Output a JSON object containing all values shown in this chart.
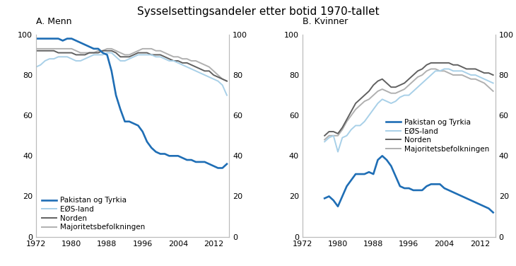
{
  "title": "Sysselsettingsandeler etter botid 1970-tallet",
  "panel_a_title": "A. Menn",
  "panel_b_title": "B. Kvinner",
  "legend_labels": [
    "Pakistan og Tyrkia",
    "EØS-land",
    "Norden",
    "Majoritetsbefolkningen"
  ],
  "colors": {
    "pakistan": "#1f6eb5",
    "eos": "#a8d0e8",
    "norden": "#606060",
    "majoritet": "#b0b0b0"
  },
  "ylim": [
    0,
    100
  ],
  "xticks": [
    1972,
    1980,
    1988,
    1996,
    2004,
    2012
  ],
  "yticks": [
    0,
    20,
    40,
    60,
    80,
    100
  ],
  "men": {
    "pakistan": {
      "years": [
        1972,
        1973,
        1974,
        1975,
        1976,
        1977,
        1978,
        1979,
        1980,
        1981,
        1982,
        1983,
        1984,
        1985,
        1986,
        1987,
        1988,
        1989,
        1990,
        1991,
        1992,
        1993,
        1994,
        1995,
        1996,
        1997,
        1998,
        1999,
        2000,
        2001,
        2002,
        2003,
        2004,
        2005,
        2006,
        2007,
        2008,
        2009,
        2010,
        2011,
        2012,
        2013,
        2014,
        2015
      ],
      "values": [
        98,
        98,
        98,
        98,
        98,
        98,
        97,
        98,
        98,
        97,
        96,
        95,
        94,
        93,
        93,
        91,
        90,
        82,
        70,
        63,
        57,
        57,
        56,
        55,
        52,
        47,
        44,
        42,
        41,
        41,
        40,
        40,
        40,
        39,
        38,
        38,
        37,
        37,
        37,
        36,
        35,
        34,
        34,
        36
      ]
    },
    "eos": {
      "years": [
        1972,
        1973,
        1974,
        1975,
        1976,
        1977,
        1978,
        1979,
        1980,
        1981,
        1982,
        1983,
        1984,
        1985,
        1986,
        1987,
        1988,
        1989,
        1990,
        1991,
        1992,
        1993,
        1994,
        1995,
        1996,
        1997,
        1998,
        1999,
        2000,
        2001,
        2002,
        2003,
        2004,
        2005,
        2006,
        2007,
        2008,
        2009,
        2010,
        2011,
        2012,
        2013,
        2014,
        2015
      ],
      "values": [
        84,
        85,
        87,
        88,
        88,
        89,
        89,
        89,
        88,
        87,
        87,
        88,
        89,
        90,
        90,
        90,
        91,
        91,
        89,
        87,
        87,
        88,
        89,
        90,
        90,
        90,
        90,
        89,
        89,
        88,
        87,
        87,
        86,
        85,
        84,
        83,
        82,
        81,
        80,
        79,
        78,
        77,
        75,
        70
      ]
    },
    "norden": {
      "years": [
        1972,
        1973,
        1974,
        1975,
        1976,
        1977,
        1978,
        1979,
        1980,
        1981,
        1982,
        1983,
        1984,
        1985,
        1986,
        1987,
        1988,
        1989,
        1990,
        1991,
        1992,
        1993,
        1994,
        1995,
        1996,
        1997,
        1998,
        1999,
        2000,
        2001,
        2002,
        2003,
        2004,
        2005,
        2006,
        2007,
        2008,
        2009,
        2010,
        2011,
        2012,
        2013,
        2014,
        2015
      ],
      "values": [
        92,
        92,
        92,
        92,
        92,
        91,
        91,
        91,
        91,
        90,
        90,
        90,
        91,
        91,
        91,
        92,
        92,
        92,
        91,
        89,
        89,
        89,
        90,
        91,
        91,
        91,
        90,
        90,
        90,
        89,
        88,
        87,
        87,
        86,
        86,
        85,
        84,
        83,
        82,
        82,
        80,
        79,
        78,
        77
      ]
    },
    "majoritet": {
      "years": [
        1972,
        1973,
        1974,
        1975,
        1976,
        1977,
        1978,
        1979,
        1980,
        1981,
        1982,
        1983,
        1984,
        1985,
        1986,
        1987,
        1988,
        1989,
        1990,
        1991,
        1992,
        1993,
        1994,
        1995,
        1996,
        1997,
        1998,
        1999,
        2000,
        2001,
        2002,
        2003,
        2004,
        2005,
        2006,
        2007,
        2008,
        2009,
        2010,
        2011,
        2012,
        2013,
        2014,
        2015
      ],
      "values": [
        93,
        93,
        93,
        93,
        93,
        93,
        93,
        93,
        93,
        92,
        91,
        91,
        91,
        91,
        92,
        92,
        93,
        93,
        92,
        91,
        90,
        90,
        91,
        92,
        93,
        93,
        93,
        92,
        92,
        91,
        90,
        89,
        89,
        88,
        88,
        87,
        87,
        86,
        85,
        84,
        82,
        80,
        78,
        77
      ]
    }
  },
  "women": {
    "pakistan": {
      "years": [
        1977,
        1978,
        1979,
        1980,
        1981,
        1982,
        1983,
        1984,
        1985,
        1986,
        1987,
        1988,
        1989,
        1990,
        1991,
        1992,
        1993,
        1994,
        1995,
        1996,
        1997,
        1998,
        1999,
        2000,
        2001,
        2002,
        2003,
        2004,
        2005,
        2006,
        2007,
        2008,
        2009,
        2010,
        2011,
        2012,
        2013,
        2014,
        2015
      ],
      "values": [
        19,
        20,
        18,
        15,
        20,
        25,
        28,
        31,
        31,
        31,
        32,
        31,
        38,
        40,
        38,
        35,
        30,
        25,
        24,
        24,
        23,
        23,
        23,
        25,
        26,
        26,
        26,
        24,
        23,
        22,
        21,
        20,
        19,
        18,
        17,
        16,
        15,
        14,
        12
      ]
    },
    "eos": {
      "years": [
        1977,
        1978,
        1979,
        1980,
        1981,
        1982,
        1983,
        1984,
        1985,
        1986,
        1987,
        1988,
        1989,
        1990,
        1991,
        1992,
        1993,
        1994,
        1995,
        1996,
        1997,
        1998,
        1999,
        2000,
        2001,
        2002,
        2003,
        2004,
        2005,
        2006,
        2007,
        2008,
        2009,
        2010,
        2011,
        2012,
        2013,
        2014,
        2015
      ],
      "values": [
        47,
        49,
        50,
        42,
        49,
        50,
        53,
        55,
        55,
        57,
        60,
        63,
        66,
        68,
        67,
        66,
        67,
        69,
        70,
        70,
        72,
        74,
        76,
        78,
        80,
        82,
        82,
        83,
        83,
        82,
        82,
        82,
        81,
        80,
        80,
        79,
        78,
        77,
        76
      ]
    },
    "norden": {
      "years": [
        1977,
        1978,
        1979,
        1980,
        1981,
        1982,
        1983,
        1984,
        1985,
        1986,
        1987,
        1988,
        1989,
        1990,
        1991,
        1992,
        1993,
        1994,
        1995,
        1996,
        1997,
        1998,
        1999,
        2000,
        2001,
        2002,
        2003,
        2004,
        2005,
        2006,
        2007,
        2008,
        2009,
        2010,
        2011,
        2012,
        2013,
        2014,
        2015
      ],
      "values": [
        50,
        52,
        52,
        51,
        54,
        58,
        62,
        66,
        68,
        70,
        72,
        75,
        77,
        78,
        76,
        74,
        74,
        75,
        76,
        78,
        80,
        82,
        83,
        85,
        86,
        86,
        86,
        86,
        86,
        85,
        85,
        84,
        83,
        83,
        83,
        82,
        81,
        81,
        80
      ]
    },
    "majoritet": {
      "years": [
        1977,
        1978,
        1979,
        1980,
        1981,
        1982,
        1983,
        1984,
        1985,
        1986,
        1987,
        1988,
        1989,
        1990,
        1991,
        1992,
        1993,
        1994,
        1995,
        1996,
        1997,
        1998,
        1999,
        2000,
        2001,
        2002,
        2003,
        2004,
        2005,
        2006,
        2007,
        2008,
        2009,
        2010,
        2011,
        2012,
        2013,
        2014,
        2015
      ],
      "values": [
        48,
        50,
        50,
        50,
        53,
        57,
        60,
        63,
        65,
        67,
        68,
        70,
        72,
        73,
        72,
        71,
        71,
        72,
        73,
        75,
        77,
        79,
        80,
        82,
        83,
        83,
        82,
        82,
        81,
        80,
        80,
        80,
        79,
        78,
        78,
        77,
        76,
        74,
        72
      ]
    }
  }
}
